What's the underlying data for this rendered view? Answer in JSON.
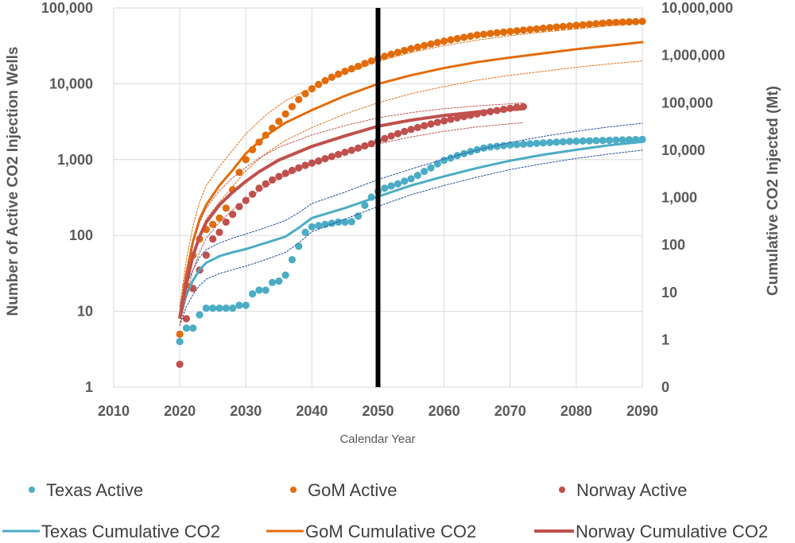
{
  "chart_data": {
    "type": "line",
    "xlabel": "Calendar Year",
    "ylabel_left": "Number of Active CO2 Injection Wells",
    "ylabel_right": "Cumulative CO2 Injected (Mt)",
    "x_ticks": [
      "2010",
      "2020",
      "2030",
      "2040",
      "2050",
      "2060",
      "2070",
      "2080",
      "2090"
    ],
    "xlim": [
      2010,
      2090
    ],
    "y_left_ticks": [
      "1",
      "10",
      "100",
      "1,000",
      "10,000",
      "100,000"
    ],
    "y_left_log_range": [
      1,
      100000
    ],
    "y_right_ticks": [
      "0",
      "1",
      "10",
      "100",
      "1,000",
      "10,000",
      "100,000",
      "1,000,000",
      "10,000,000"
    ],
    "y_right_log_range": [
      0.1,
      10000000
    ],
    "vertical_marker_year": 2050,
    "series": [
      {
        "name": "Texas Active",
        "kind": "scatter",
        "axis": "left",
        "color": "#4bacc6",
        "x": [
          2020,
          2021,
          2022,
          2023,
          2024,
          2025,
          2026,
          2027,
          2028,
          2029,
          2030,
          2031,
          2032,
          2033,
          2034,
          2035,
          2036,
          2037,
          2038,
          2039,
          2040,
          2041,
          2042,
          2043,
          2044,
          2045,
          2046,
          2047,
          2048,
          2049,
          2050,
          2051,
          2052,
          2053,
          2054,
          2055,
          2056,
          2057,
          2058,
          2059,
          2060,
          2061,
          2062,
          2063,
          2064,
          2065,
          2066,
          2067,
          2068,
          2069,
          2070,
          2071,
          2072,
          2073,
          2074,
          2075,
          2076,
          2077,
          2078,
          2079,
          2080,
          2081,
          2082,
          2083,
          2084,
          2085,
          2086,
          2087,
          2088,
          2089,
          2090
        ],
        "values": [
          4,
          6,
          6,
          9,
          11,
          11,
          11,
          11,
          11,
          12,
          12,
          17,
          19,
          19,
          24,
          25,
          30,
          48,
          72,
          110,
          130,
          135,
          140,
          145,
          150,
          150,
          152,
          180,
          250,
          320,
          380,
          420,
          450,
          480,
          520,
          560,
          620,
          700,
          780,
          880,
          980,
          1050,
          1130,
          1200,
          1280,
          1350,
          1420,
          1470,
          1500,
          1530,
          1560,
          1580,
          1600,
          1620,
          1640,
          1660,
          1680,
          1700,
          1720,
          1740,
          1750,
          1760,
          1770,
          1780,
          1790,
          1800,
          1810,
          1820,
          1830,
          1840,
          1850
        ]
      },
      {
        "name": "GoM Active",
        "kind": "scatter",
        "axis": "left",
        "color": "#e36c0a",
        "x": [
          2020,
          2021,
          2022,
          2023,
          2024,
          2025,
          2026,
          2027,
          2028,
          2029,
          2030,
          2031,
          2032,
          2033,
          2034,
          2035,
          2036,
          2037,
          2038,
          2039,
          2040,
          2041,
          2042,
          2043,
          2044,
          2045,
          2046,
          2047,
          2048,
          2049,
          2050,
          2051,
          2052,
          2053,
          2054,
          2055,
          2056,
          2057,
          2058,
          2059,
          2060,
          2061,
          2062,
          2063,
          2064,
          2065,
          2066,
          2067,
          2068,
          2069,
          2070,
          2071,
          2072,
          2073,
          2074,
          2075,
          2076,
          2077,
          2078,
          2079,
          2080,
          2081,
          2082,
          2083,
          2084,
          2085,
          2086,
          2087,
          2088,
          2089,
          2090
        ],
        "values": [
          5,
          22,
          55,
          90,
          120,
          140,
          170,
          230,
          400,
          680,
          1000,
          1350,
          1700,
          2100,
          2600,
          3200,
          4000,
          5000,
          6200,
          7400,
          8600,
          9800,
          11000,
          12200,
          13400,
          14600,
          15800,
          17000,
          18500,
          20000,
          21500,
          23000,
          24500,
          26000,
          27500,
          29000,
          30500,
          32000,
          33500,
          35000,
          36500,
          38000,
          39500,
          41000,
          42500,
          44000,
          45000,
          46000,
          47000,
          48000,
          49000,
          50000,
          51000,
          52000,
          53000,
          54000,
          55000,
          56000,
          57000,
          58000,
          59000,
          60000,
          61000,
          62000,
          63000,
          64000,
          64500,
          65000,
          65500,
          66000,
          66500
        ]
      },
      {
        "name": "Norway Active",
        "kind": "scatter",
        "axis": "left",
        "color": "#c0504d",
        "x": [
          2020,
          2021,
          2022,
          2023,
          2024,
          2025,
          2026,
          2027,
          2028,
          2029,
          2030,
          2031,
          2032,
          2033,
          2034,
          2035,
          2036,
          2037,
          2038,
          2039,
          2040,
          2041,
          2042,
          2043,
          2044,
          2045,
          2046,
          2047,
          2048,
          2049,
          2050,
          2051,
          2052,
          2053,
          2054,
          2055,
          2056,
          2057,
          2058,
          2059,
          2060,
          2061,
          2062,
          2063,
          2064,
          2065,
          2066,
          2067,
          2068,
          2069,
          2070,
          2071,
          2072
        ],
        "values": [
          2,
          8,
          20,
          35,
          55,
          90,
          110,
          150,
          190,
          240,
          290,
          350,
          420,
          480,
          540,
          600,
          660,
          720,
          780,
          840,
          900,
          960,
          1030,
          1100,
          1170,
          1250,
          1330,
          1420,
          1520,
          1620,
          1750,
          1900,
          2050,
          2200,
          2350,
          2500,
          2650,
          2800,
          2950,
          3100,
          3250,
          3400,
          3550,
          3700,
          3850,
          4000,
          4150,
          4300,
          4450,
          4600,
          4750,
          4900,
          5000
        ]
      },
      {
        "name": "Texas Cumulative CO2",
        "kind": "line",
        "axis": "right",
        "color": "#4bacc6",
        "width": 3,
        "x": [
          2020,
          2021,
          2022,
          2023,
          2024,
          2026,
          2028,
          2030,
          2032,
          2034,
          2036,
          2038,
          2040,
          2045,
          2050,
          2055,
          2060,
          2065,
          2070,
          2075,
          2080,
          2085,
          2090
        ],
        "values": [
          3,
          9,
          18,
          30,
          42,
          58,
          70,
          82,
          100,
          122,
          150,
          230,
          370,
          600,
          1050,
          1800,
          2800,
          4200,
          6000,
          8000,
          10200,
          12700,
          15000
        ]
      },
      {
        "name": "Texas Cumulative CO2 upper",
        "kind": "dotted",
        "axis": "right",
        "color": "#1f4e9c",
        "width": 1,
        "x": [
          2020,
          2021,
          2022,
          2023,
          2024,
          2026,
          2028,
          2030,
          2032,
          2034,
          2036,
          2038,
          2040,
          2045,
          2050,
          2055,
          2060,
          2065,
          2070,
          2075,
          2080,
          2085,
          2090
        ],
        "values": [
          4,
          14,
          30,
          55,
          80,
          110,
          140,
          170,
          210,
          260,
          330,
          480,
          750,
          1300,
          2400,
          4000,
          6500,
          10000,
          14500,
          19500,
          25000,
          31000,
          37000
        ]
      },
      {
        "name": "Texas Cumulative CO2 lower",
        "kind": "dotted",
        "axis": "right",
        "color": "#1f4e9c",
        "width": 1,
        "x": [
          2020,
          2021,
          2022,
          2023,
          2024,
          2026,
          2028,
          2030,
          2032,
          2034,
          2036,
          2038,
          2040,
          2045,
          2050,
          2055,
          2060,
          2065,
          2070,
          2075,
          2080,
          2085,
          2090
        ],
        "values": [
          2,
          5,
          9,
          14,
          19,
          25,
          30,
          36,
          44,
          55,
          70,
          110,
          190,
          350,
          650,
          1150,
          1800,
          2700,
          3900,
          5200,
          6700,
          8300,
          10000
        ]
      },
      {
        "name": "GoM Cumulative CO2",
        "kind": "line",
        "axis": "right",
        "color": "#e36c0a",
        "width": 3,
        "x": [
          2020,
          2021,
          2022,
          2023,
          2024,
          2026,
          2028,
          2030,
          2033,
          2036,
          2040,
          2045,
          2050,
          2055,
          2060,
          2065,
          2070,
          2075,
          2080,
          2085,
          2090
        ],
        "values": [
          3,
          25,
          120,
          350,
          700,
          1800,
          3800,
          8500,
          20000,
          38000,
          70000,
          140000,
          250000,
          380000,
          540000,
          720000,
          900000,
          1100000,
          1350000,
          1600000,
          1900000
        ]
      },
      {
        "name": "GoM Cumulative CO2 upper",
        "kind": "dotted",
        "axis": "right",
        "color": "#e36c0a",
        "width": 1,
        "x": [
          2020,
          2021,
          2022,
          2023,
          2024,
          2026,
          2028,
          2030,
          2033,
          2036,
          2040,
          2045,
          2050,
          2055,
          2060,
          2065,
          2070,
          2075,
          2080,
          2085,
          2090
        ],
        "values": [
          5,
          50,
          250,
          800,
          1800,
          4500,
          10000,
          22000,
          55000,
          110000,
          210000,
          420000,
          750000,
          1150000,
          1600000,
          2100000,
          2600000,
          3100000,
          3600000,
          4200000,
          4800000
        ]
      },
      {
        "name": "GoM Cumulative CO2 lower",
        "kind": "dotted",
        "axis": "right",
        "color": "#e36c0a",
        "width": 1,
        "x": [
          2020,
          2021,
          2022,
          2023,
          2024,
          2026,
          2028,
          2030,
          2033,
          2036,
          2040,
          2045,
          2050,
          2055,
          2060,
          2065,
          2070,
          2075,
          2080,
          2085,
          2090
        ],
        "values": [
          2,
          15,
          60,
          170,
          350,
          800,
          1700,
          3700,
          8500,
          16000,
          30000,
          58000,
          100000,
          155000,
          220000,
          300000,
          380000,
          460000,
          560000,
          660000,
          760000
        ]
      },
      {
        "name": "Norway Cumulative CO2",
        "kind": "line",
        "axis": "right",
        "color": "#c0504d",
        "width": 4,
        "x": [
          2020,
          2021,
          2022,
          2023,
          2024,
          2026,
          2028,
          2030,
          2032,
          2035,
          2040,
          2045,
          2050,
          2055,
          2060,
          2065,
          2070,
          2072
        ],
        "values": [
          3,
          15,
          60,
          150,
          300,
          700,
          1300,
          2200,
          3500,
          6200,
          12000,
          20000,
          32000,
          43000,
          54000,
          64000,
          72000,
          75000
        ]
      },
      {
        "name": "Norway Cumulative CO2 upper",
        "kind": "dotted",
        "axis": "right",
        "color": "#c0504d",
        "width": 1,
        "x": [
          2020,
          2021,
          2022,
          2023,
          2024,
          2026,
          2028,
          2030,
          2032,
          2035,
          2040,
          2045,
          2050,
          2055,
          2060,
          2065,
          2070,
          2072
        ],
        "values": [
          5,
          25,
          110,
          300,
          600,
          1400,
          2600,
          4300,
          6800,
          11500,
          21000,
          33000,
          48000,
          62000,
          75000,
          86000,
          95000,
          100000
        ]
      },
      {
        "name": "Norway Cumulative CO2 lower",
        "kind": "dotted",
        "axis": "right",
        "color": "#c0504d",
        "width": 1,
        "x": [
          2020,
          2021,
          2022,
          2023,
          2024,
          2026,
          2028,
          2030,
          2032,
          2035,
          2040,
          2045,
          2050,
          2055,
          2060,
          2065,
          2070,
          2072
        ],
        "values": [
          2,
          8,
          30,
          70,
          140,
          300,
          550,
          900,
          1400,
          2500,
          5000,
          8500,
          13500,
          19000,
          25000,
          31000,
          36000,
          38000
        ]
      }
    ]
  },
  "legend": {
    "texas_active": "Texas Active",
    "gom_active": "GoM Active",
    "norway_active": "Norway Active",
    "texas_cum": "Texas Cumulative CO2",
    "gom_cum": "GoM Cumulative CO2",
    "norway_cum": "Norway Cumulative CO2"
  },
  "colors": {
    "texas": "#4bacc6",
    "gom": "#e36c0a",
    "norway": "#c0504d",
    "marker": "#000000",
    "grid": "#d9d9d9"
  }
}
